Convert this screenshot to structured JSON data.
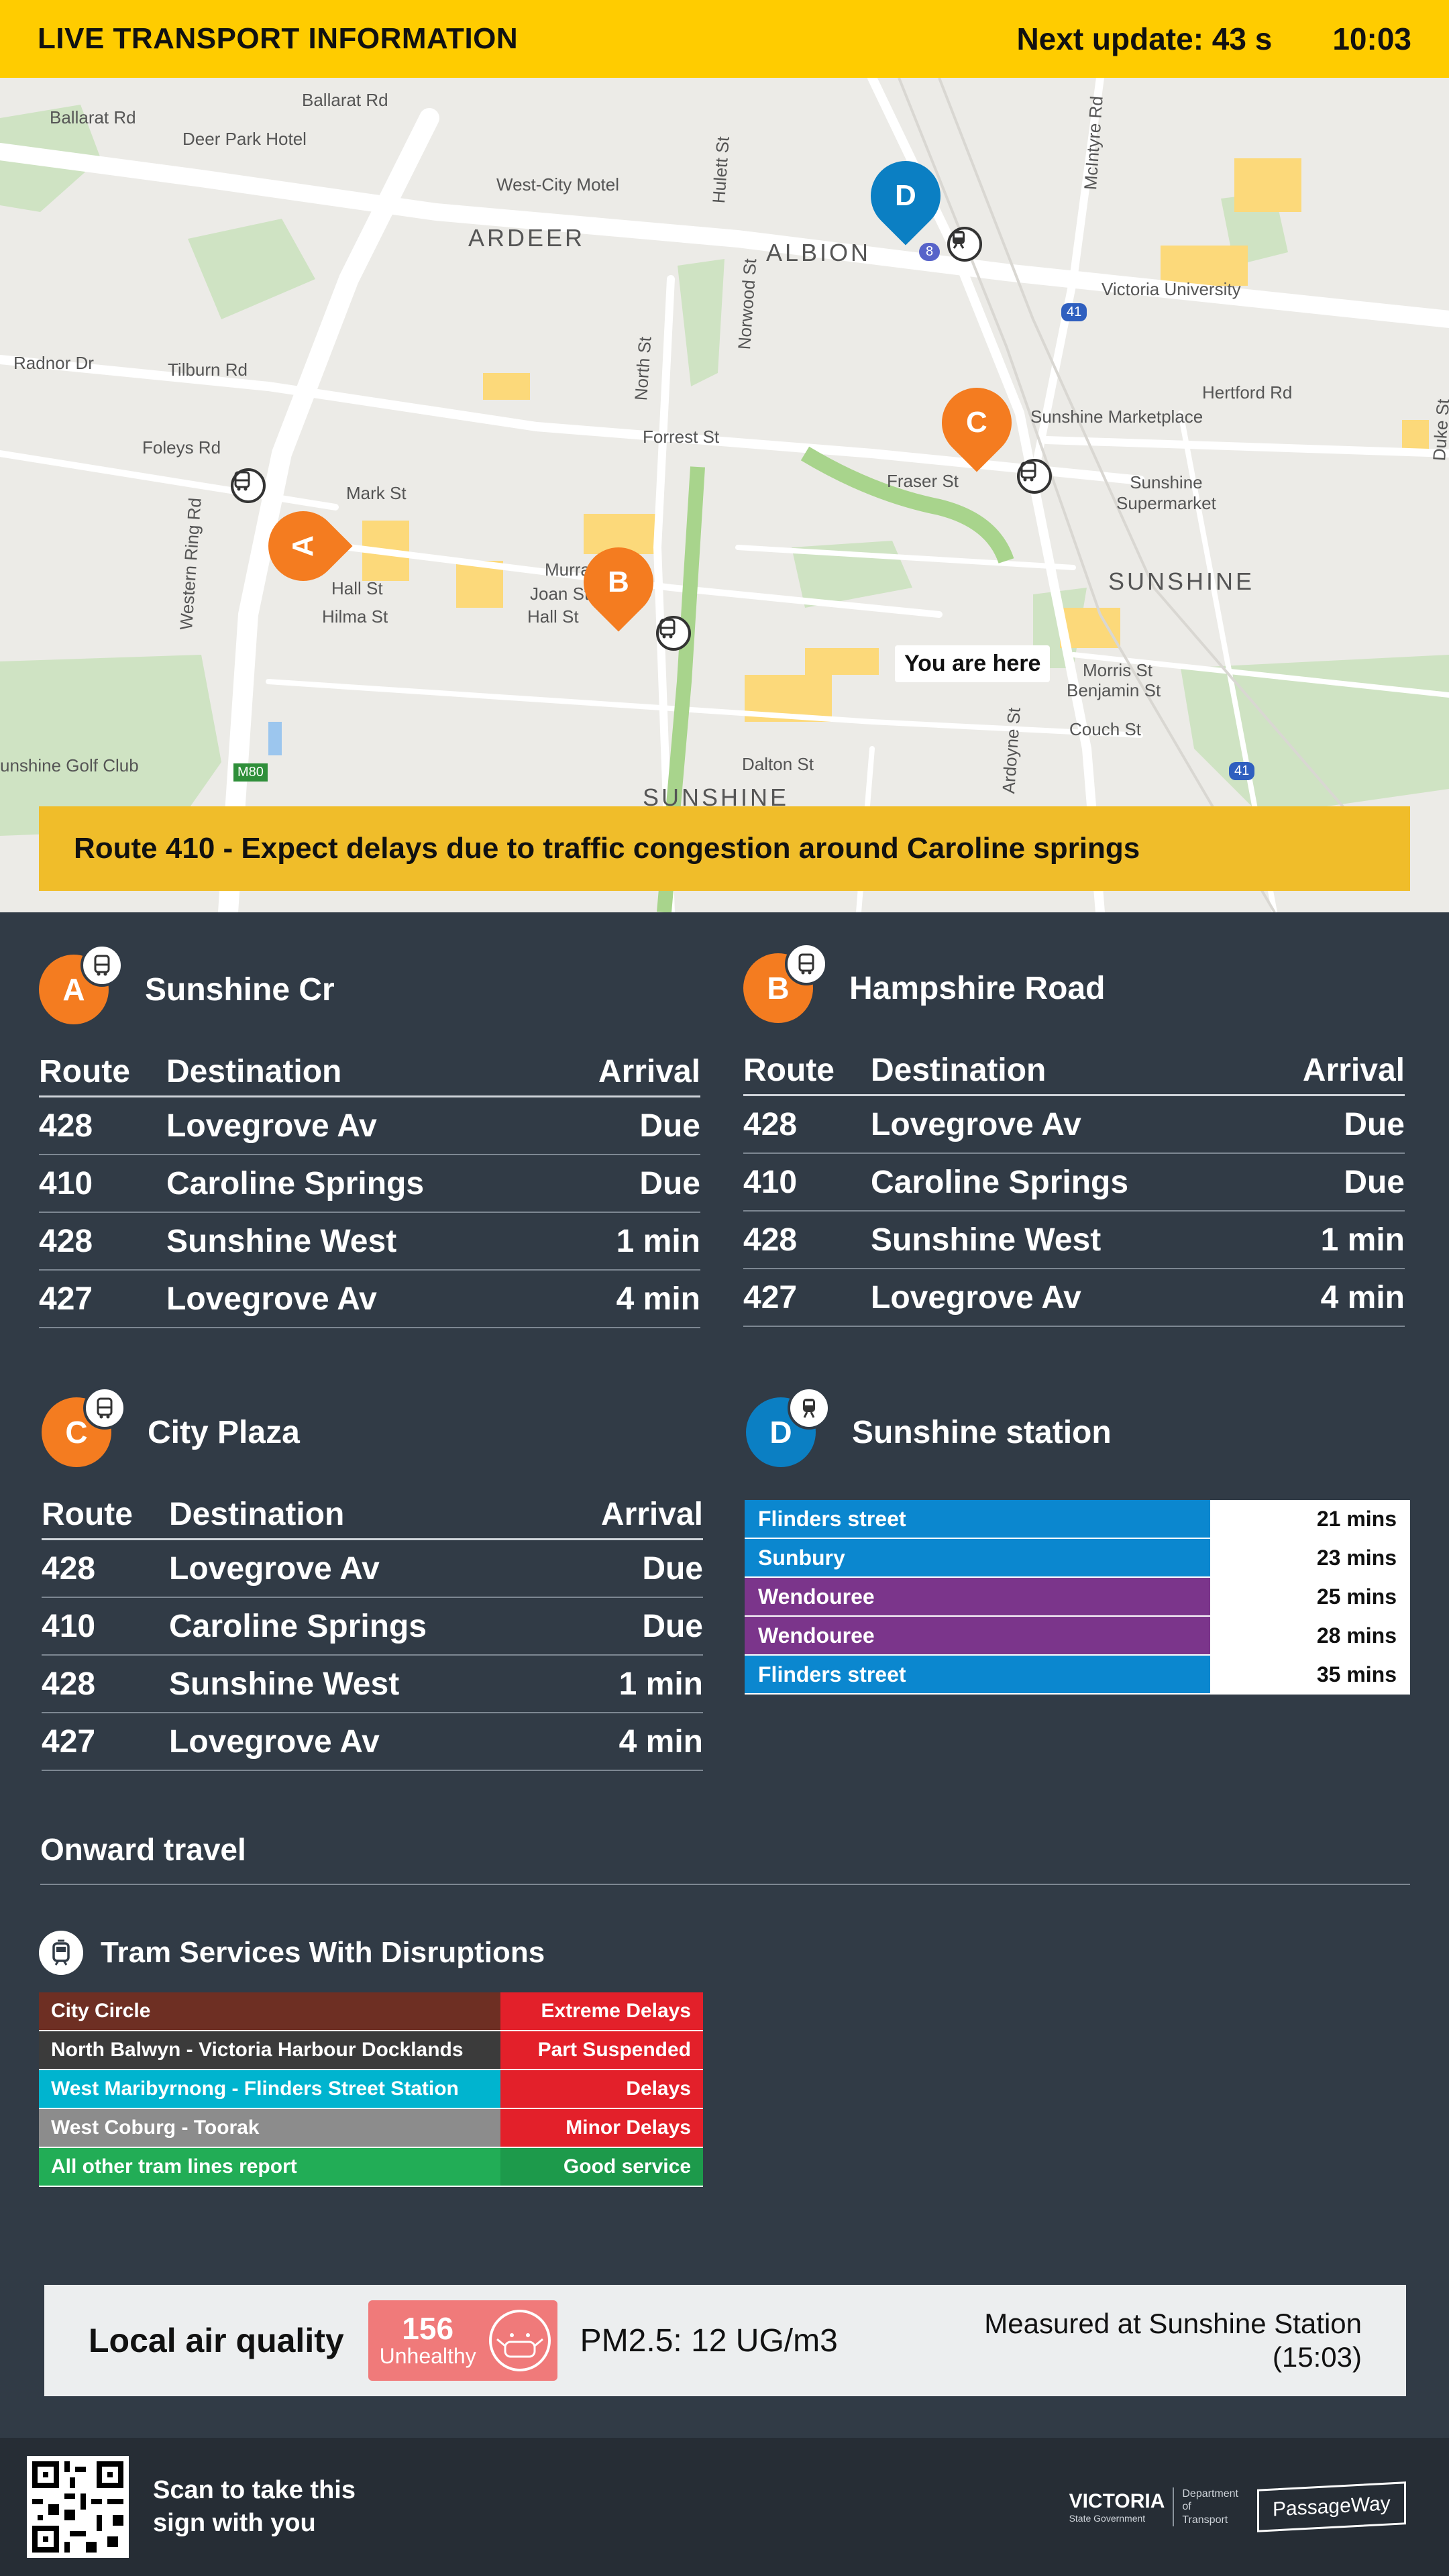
{
  "header": {
    "title": "LIVE TRANSPORT INFORMATION",
    "next_update": "Next update: 43 s",
    "clock": "10:03"
  },
  "map": {
    "you_are_here": "You are here",
    "alert": "Route 410 - Expect delays due to traffic congestion around Caroline springs",
    "labels": {
      "ballarat_rd_1": "Ballarat Rd",
      "ballarat_rd_2": "Ballarat Rd",
      "deer_park_hotel": "Deer Park Hotel",
      "west_city_motel": "West-City Motel",
      "ardeer": "ARDEER",
      "albion": "ALBION",
      "sunshine": "SUNSHINE",
      "sunshine_south": "SUNSHINE",
      "tilburn_rd": "Tilburn Rd",
      "radnor_dr": "Radnor Dr",
      "foleys_rd": "Foleys Rd",
      "forrest_st": "Forrest St",
      "mark_st": "Mark St",
      "hall_st_1": "Hall St",
      "hall_st_2": "Hall St",
      "hilma_st": "Hilma St",
      "joan_st": "Joan St",
      "murray": "Murra",
      "fraser_st": "Fraser St",
      "victoria_university": "Victoria University",
      "hertford_rd": "Hertford Rd",
      "sunshine_marketplace": "Sunshine Marketplace",
      "sunshine_supermarket": "Sunshine\nSupermarket",
      "morris_st": "Morris St",
      "benjamin_st": "Benjamin St",
      "couch_st": "Couch St",
      "dalton_st": "Dalton St",
      "western_ring_rd": "Western Ring Rd",
      "sunshine_golf_club": "unshine Golf Club",
      "north_st": "North St",
      "norwood_st": "Norwood St",
      "hulett_st": "Hulett St",
      "mcintyre_rd": "McIntyre Rd",
      "duke_st": "Duke St",
      "ardoyne_st": "Ardoyne St",
      "m80": "M80",
      "route_41a": "41",
      "route_41b": "41",
      "route_8": "8"
    },
    "pins": [
      "A",
      "B",
      "C",
      "D"
    ]
  },
  "stops": [
    {
      "letter": "A",
      "name": "Sunshine Cr",
      "headers": [
        "Route",
        "Destination",
        "Arrival"
      ],
      "rows": [
        {
          "route": "428",
          "dest": "Lovegrove Av",
          "arrival": "Due"
        },
        {
          "route": "410",
          "dest": "Caroline Springs",
          "arrival": "Due"
        },
        {
          "route": "428",
          "dest": "Sunshine West",
          "arrival": "1 min"
        },
        {
          "route": "427",
          "dest": "Lovegrove Av",
          "arrival": "4 min"
        }
      ]
    },
    {
      "letter": "B",
      "name": "Hampshire Road",
      "headers": [
        "Route",
        "Destination",
        "Arrival"
      ],
      "rows": [
        {
          "route": "428",
          "dest": "Lovegrove Av",
          "arrival": "Due"
        },
        {
          "route": "410",
          "dest": "Caroline Springs",
          "arrival": "Due"
        },
        {
          "route": "428",
          "dest": "Sunshine West",
          "arrival": "1 min"
        },
        {
          "route": "427",
          "dest": "Lovegrove Av",
          "arrival": "4 min"
        }
      ]
    },
    {
      "letter": "C",
      "name": "City Plaza",
      "headers": [
        "Route",
        "Destination",
        "Arrival"
      ],
      "rows": [
        {
          "route": "428",
          "dest": "Lovegrove Av",
          "arrival": "Due"
        },
        {
          "route": "410",
          "dest": "Caroline Springs",
          "arrival": "Due"
        },
        {
          "route": "428",
          "dest": "Sunshine West",
          "arrival": "1 min"
        },
        {
          "route": "427",
          "dest": "Lovegrove Av",
          "arrival": "4 min"
        }
      ]
    },
    {
      "letter": "D",
      "name": "Sunshine station"
    }
  ],
  "trains": [
    {
      "line": "Flinders street",
      "time": "21 mins",
      "color": "#0b87cf"
    },
    {
      "line": "Sunbury",
      "time": "23 mins",
      "color": "#0b87cf"
    },
    {
      "line": "Wendouree",
      "time": "25 mins",
      "color": "#7b358b"
    },
    {
      "line": "Wendouree",
      "time": "28 mins",
      "color": "#7b358b"
    },
    {
      "line": "Flinders street",
      "time": "35 mins",
      "color": "#0b87cf"
    }
  ],
  "onward": {
    "title": "Onward travel",
    "tram_title": "Tram Services With Disruptions",
    "rows": [
      {
        "line": "City Circle",
        "status": "Extreme Delays",
        "line_color": "#6e2f23",
        "status_color": "#e3202a"
      },
      {
        "line": "North Balwyn - Victoria Harbour Docklands",
        "status": "Part Suspended",
        "line_color": "#3b3b3b",
        "status_color": "#e3202a"
      },
      {
        "line": "West Maribyrnong - Flinders Street Station",
        "status": "Delays",
        "line_color": "#00b4cf",
        "status_color": "#e3202a"
      },
      {
        "line": "West Coburg - Toorak",
        "status": "Minor Delays",
        "line_color": "#8c8c8c",
        "status_color": "#e3202a"
      },
      {
        "line": "All other tram lines report",
        "status": "Good service",
        "line_color": "#22ad56",
        "status_color": "#1d9a4b"
      }
    ]
  },
  "air": {
    "label": "Local air quality",
    "value": "156",
    "status": "Unhealthy",
    "pm": "PM2.5: 12 UG/m3",
    "measured_line1": "Measured at Sunshine Station",
    "measured_line2": "(15:03)"
  },
  "footer": {
    "scan_text": "Scan to take this sign with you",
    "victoria": "VICTORIA",
    "state_gov": "State Government",
    "dept": "Department of Transport",
    "passageway": "PassageWay"
  }
}
